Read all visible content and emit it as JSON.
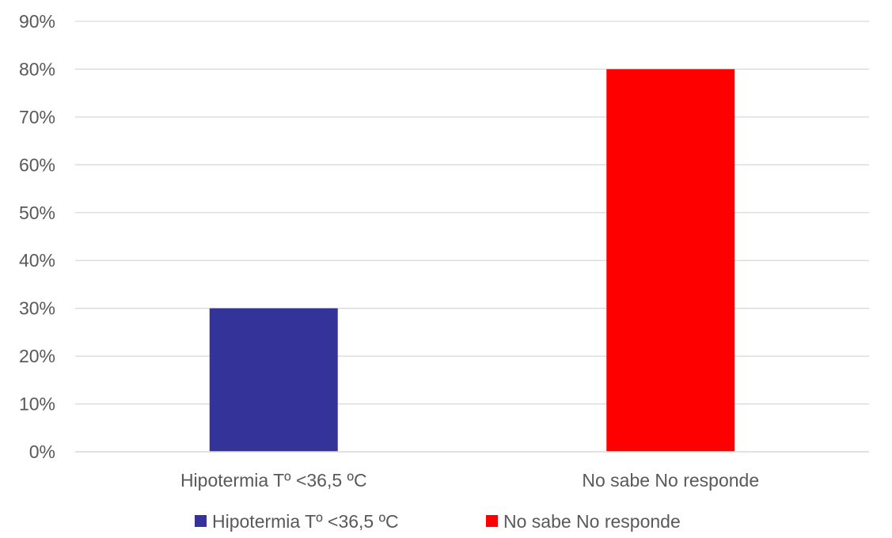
{
  "chart_data": {
    "type": "bar",
    "title": "",
    "xlabel": "",
    "ylabel": "",
    "categories": [
      "Hipotermia Tº <36,5 ºC",
      "No sabe No responde"
    ],
    "values": [
      0.3,
      0.8
    ],
    "colors": [
      "#333399",
      "#ff0000"
    ],
    "ylim": [
      0,
      0.9
    ],
    "yticks": [
      "0%",
      "10%",
      "20%",
      "30%",
      "40%",
      "50%",
      "60%",
      "70%",
      "80%",
      "90%"
    ],
    "grid": true,
    "legend": {
      "position": "bottom",
      "entries": [
        {
          "label": "Hipotermia Tº <36,5 ºC",
          "color": "#333399"
        },
        {
          "label": "No sabe No responde",
          "color": "#ff0000"
        }
      ]
    }
  }
}
